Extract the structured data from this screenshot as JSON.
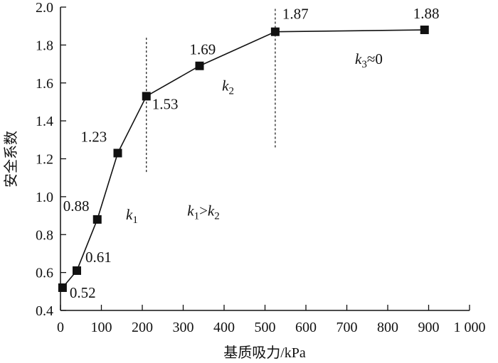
{
  "chart_data": {
    "type": "line",
    "title": "",
    "xlabel": "基质吸力/kPa",
    "ylabel": "安全系数",
    "xlim": [
      0,
      1000
    ],
    "ylim": [
      0.4,
      2.0
    ],
    "xticks": [
      0,
      100,
      200,
      300,
      400,
      500,
      600,
      700,
      800,
      900,
      1000
    ],
    "xtick_labels": [
      "0",
      "100",
      "200",
      "300",
      "400",
      "500",
      "600",
      "700",
      "800",
      "900",
      "1 000"
    ],
    "yticks": [
      0.4,
      0.6,
      0.8,
      1.0,
      1.2,
      1.4,
      1.6,
      1.8,
      2.0
    ],
    "ytick_labels": [
      "0.4",
      "0.6",
      "0.8",
      "1.0",
      "1.2",
      "1.4",
      "1.6",
      "1.8",
      "2.0"
    ],
    "grid": false,
    "series": [
      {
        "name": "安全系数",
        "marker": "square",
        "color": "#111111",
        "x": [
          5,
          40,
          90,
          140,
          210,
          340,
          525,
          890
        ],
        "y": [
          0.52,
          0.61,
          0.88,
          1.23,
          1.53,
          1.69,
          1.87,
          1.88
        ],
        "data_labels": [
          "0.52",
          "0.61",
          "0.88",
          "1.23",
          "1.53",
          "1.69",
          "1.87",
          "1.88"
        ]
      }
    ],
    "reference_lines": [
      {
        "x": 210,
        "style": "dashed",
        "y_range": [
          1.13,
          1.84
        ]
      },
      {
        "x": 525,
        "style": "dashed",
        "y_range": [
          1.26,
          2.0
        ]
      }
    ],
    "annotations": [
      {
        "id": "k1",
        "base": "k",
        "sub": "1",
        "suffix": "",
        "x": 160,
        "y": 0.88
      },
      {
        "id": "k1k2",
        "base": "k",
        "sub": "1",
        "suffix": ">",
        "base2": "k",
        "sub2": "2",
        "x": 310,
        "y": 0.9
      },
      {
        "id": "k2",
        "base": "k",
        "sub": "2",
        "suffix": "",
        "x": 395,
        "y": 1.56
      },
      {
        "id": "k3",
        "base": "k",
        "sub": "3",
        "suffix": "≈0",
        "x": 720,
        "y": 1.7
      }
    ]
  }
}
